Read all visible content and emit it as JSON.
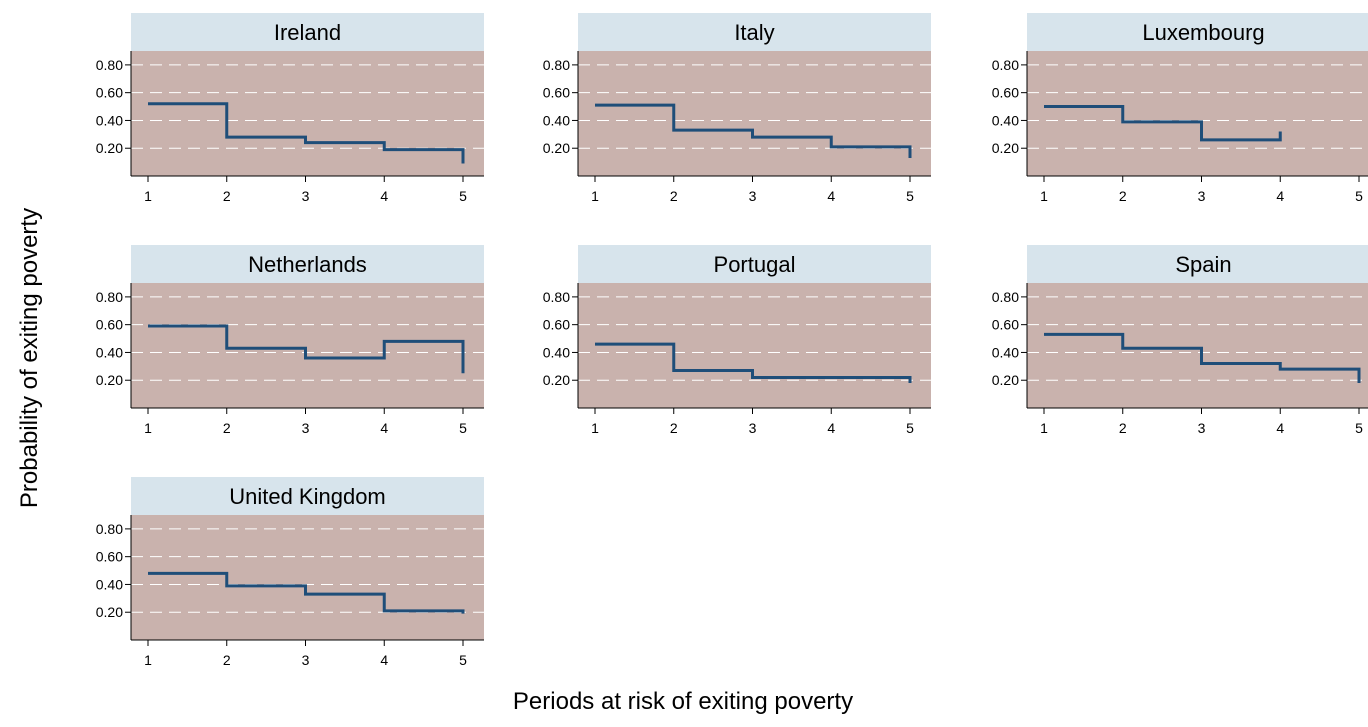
{
  "chart_data": {
    "type": "line",
    "step": true,
    "ylabel": "Probability of exiting poverty",
    "xlabel": "Periods at risk of exiting poverty",
    "x_ticks": [
      1,
      2,
      3,
      4,
      5
    ],
    "y_ticks": [
      0.2,
      0.4,
      0.6,
      0.8
    ],
    "y_tick_labels": [
      "0.20",
      "0.40",
      "0.60",
      "0.80"
    ],
    "xlim": [
      1,
      5
    ],
    "ylim": [
      0,
      0.9
    ],
    "grid": "dashed horizontal",
    "colors": {
      "plot_bg": "#c9b2ad",
      "title_bg": "#d7e4ec",
      "line": "#1f4e79",
      "grid": "#ffffff"
    },
    "panels": [
      {
        "title": "Ireland",
        "x": [
          1,
          2,
          3,
          4,
          5
        ],
        "y": [
          0.52,
          0.28,
          0.24,
          0.19,
          0.09
        ]
      },
      {
        "title": "Italy",
        "x": [
          1,
          2,
          3,
          4,
          5
        ],
        "y": [
          0.51,
          0.33,
          0.28,
          0.21,
          0.13
        ]
      },
      {
        "title": "Luxembourg",
        "x": [
          1,
          2,
          3,
          4
        ],
        "y": [
          0.5,
          0.39,
          0.26,
          0.32
        ]
      },
      {
        "title": "Netherlands",
        "x": [
          1,
          2,
          3,
          4,
          5
        ],
        "y": [
          0.59,
          0.43,
          0.36,
          0.48,
          0.25
        ]
      },
      {
        "title": "Portugal",
        "x": [
          1,
          2,
          3,
          4,
          5
        ],
        "y": [
          0.46,
          0.27,
          0.22,
          0.22,
          0.18
        ]
      },
      {
        "title": "Spain",
        "x": [
          1,
          2,
          3,
          4,
          5
        ],
        "y": [
          0.53,
          0.43,
          0.32,
          0.28,
          0.18
        ]
      },
      {
        "title": "United Kingdom",
        "x": [
          1,
          2,
          3,
          4,
          5
        ],
        "y": [
          0.48,
          0.39,
          0.33,
          0.21,
          0.19
        ]
      }
    ]
  }
}
